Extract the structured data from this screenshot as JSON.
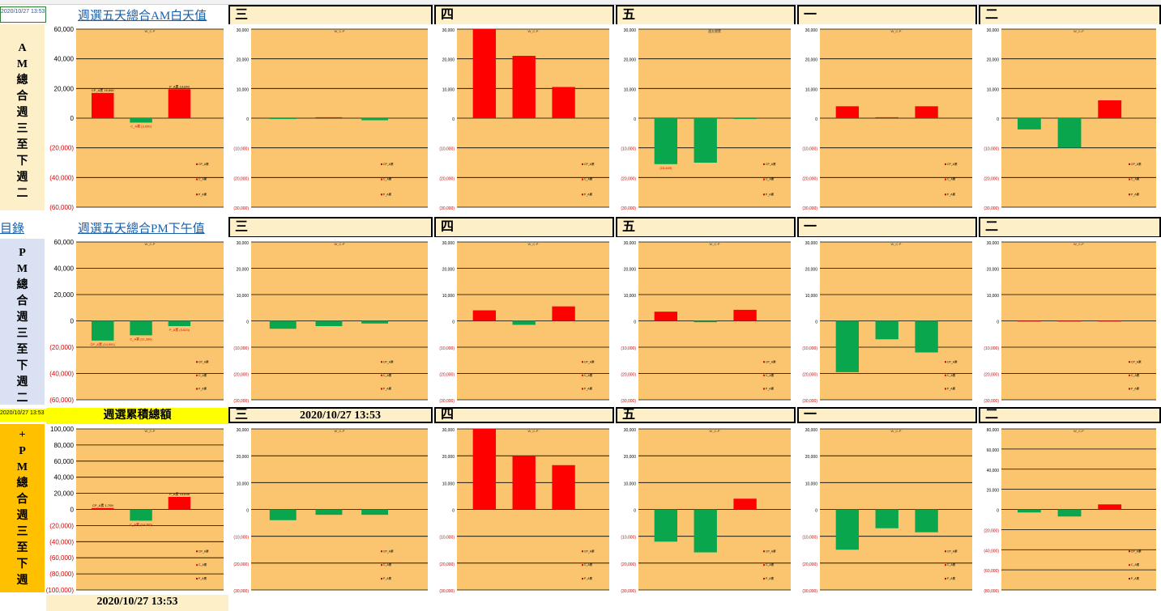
{
  "colors": {
    "plot_bg": "#fbc56f",
    "pos": "#ff0000",
    "neg": "#0aa64e",
    "grid": "#000000",
    "neg_label": "#d40000"
  },
  "rows": [
    {
      "title": "週選五天總合AM白天值",
      "left_top": "2020/10/27 13:53",
      "left_side": [
        "A",
        "M",
        "總",
        "合",
        "週",
        "三",
        "至",
        "下",
        "週",
        "二"
      ],
      "day_headers": [
        "三",
        "四",
        "五",
        "一",
        "二"
      ],
      "charts": [
        {
          "type": "bar",
          "title": "W_C-P",
          "ticks": [
            "60,000",
            "40,000",
            "20,000",
            "0",
            "(20,000)",
            "(40,000)",
            "(60,000)"
          ],
          "ylim": [
            -60000,
            60000
          ],
          "values": [
            17000,
            -3000,
            19500
          ],
          "labels": [
            "CP_A累 16,660",
            "C_A累 (3,000)",
            "P_A累 19,640"
          ]
        },
        {
          "type": "bar",
          "title": "W_C-P",
          "ticks": [
            "30,000",
            "20,000",
            "10,000",
            "0",
            "(10,000)",
            "(20,000)",
            "(30,000)"
          ],
          "ylim": [
            -30000,
            30000
          ],
          "values": [
            -300,
            300,
            -700
          ]
        },
        {
          "type": "bar",
          "title": "W_C-P",
          "ticks": [
            "30,000",
            "20,000",
            "10,000",
            "0",
            "(10,000)",
            "(20,000)",
            "(30,000)"
          ],
          "ylim": [
            -30000,
            30000
          ],
          "values": [
            30000,
            21000,
            10500
          ]
        },
        {
          "type": "bar",
          "title": "週五總累",
          "ticks": [
            "30,000",
            "20,000",
            "10,000",
            "0",
            "(10,000)",
            "(20,000)",
            "(30,000)"
          ],
          "ylim": [
            -30000,
            30000
          ],
          "values": [
            -15500,
            -15000,
            -300
          ],
          "labels": [
            "(15,469)",
            "",
            ""
          ]
        },
        {
          "type": "bar",
          "title": "W_C-P",
          "ticks": [
            "30,000",
            "20,000",
            "10,000",
            "0",
            "(10,000)",
            "(20,000)",
            "(30,000)"
          ],
          "ylim": [
            -30000,
            30000
          ],
          "values": [
            4000,
            300,
            4000
          ]
        },
        {
          "type": "bar",
          "title": "W_C-P",
          "ticks": [
            "30,000",
            "20,000",
            "10,000",
            "0",
            "(10,000)",
            "(20,000)",
            "(30,000)"
          ],
          "ylim": [
            -30000,
            30000
          ],
          "values": [
            -3800,
            -10000,
            6000
          ]
        }
      ]
    },
    {
      "title": "週選五天總合PM下午值",
      "left_top": "目錄",
      "left_side": [
        "P",
        "M",
        "總",
        "合",
        "週",
        "三",
        "至",
        "下",
        "週",
        "二"
      ],
      "day_headers": [
        "三",
        "四",
        "五",
        "一",
        "二"
      ],
      "charts": [
        {
          "type": "bar",
          "title": "W_C-P",
          "ticks": [
            "60,000",
            "40,000",
            "20,000",
            "0",
            "(20,000)",
            "(40,000)",
            "(60,000)"
          ],
          "ylim": [
            -60000,
            60000
          ],
          "values": [
            -15000,
            -11000,
            -4000
          ],
          "labels": [
            "CP_A累 (14,951)",
            "C_A累 (11,396)",
            "P_A累 (3,623)"
          ]
        },
        {
          "type": "bar",
          "title": "W_C-P",
          "ticks": [
            "30,000",
            "20,000",
            "10,000",
            "0",
            "(10,000)",
            "(20,000)",
            "(30,000)"
          ],
          "ylim": [
            -30000,
            30000
          ],
          "values": [
            -3000,
            -2000,
            -1000
          ]
        },
        {
          "type": "bar",
          "title": "W_C-P",
          "ticks": [
            "30,000",
            "20,000",
            "10,000",
            "0",
            "(10,000)",
            "(20,000)",
            "(30,000)"
          ],
          "ylim": [
            -30000,
            30000
          ],
          "values": [
            4000,
            -1500,
            5500
          ]
        },
        {
          "type": "bar",
          "title": "W_C-P",
          "ticks": [
            "30,000",
            "20,000",
            "10,000",
            "0",
            "(10,000)",
            "(20,000)",
            "(30,000)"
          ],
          "ylim": [
            -30000,
            30000
          ],
          "values": [
            3500,
            -500,
            4200
          ]
        },
        {
          "type": "bar",
          "title": "W_C-P",
          "ticks": [
            "30,000",
            "20,000",
            "10,000",
            "0",
            "(10,000)",
            "(20,000)",
            "(30,000)"
          ],
          "ylim": [
            -30000,
            30000
          ],
          "values": [
            -19500,
            -7000,
            -12000
          ]
        },
        {
          "type": "bar",
          "title": "W_C-P",
          "ticks": [
            "30,000",
            "20,000",
            "10,000",
            "0",
            "(10,000)",
            "(20,000)",
            "(30,000)"
          ],
          "ylim": [
            -30000,
            30000
          ],
          "values": [
            0,
            0,
            0
          ]
        }
      ]
    },
    {
      "title": "週選累積總額",
      "left_top": "2020/10/27 13:53",
      "left_side": [
        "+",
        "P",
        "M",
        "總",
        "合",
        "週",
        "三",
        "至",
        "下",
        "週"
      ],
      "day_headers": [
        "三",
        "四",
        "五",
        "一",
        "二"
      ],
      "timestamp": "2020/10/27 13:53",
      "bottom_timestamp": "2020/10/27 13:53",
      "charts": [
        {
          "type": "bar",
          "title": "W_C-P",
          "ticks": [
            "100,000",
            "80,000",
            "60,000",
            "40,000",
            "20,000",
            "0",
            "(20,000)",
            "(40,000)",
            "(60,000)",
            "(80,000)",
            "(100,000)"
          ],
          "ylim": [
            -100000,
            100000
          ],
          "values": [
            1700,
            -14000,
            15600
          ],
          "labels": [
            "CP_A累 1,709",
            "C_A累 (14,395)",
            "P_A累 15,638"
          ]
        },
        {
          "type": "bar",
          "title": "W_C-P",
          "ticks": [
            "30,000",
            "20,000",
            "10,000",
            "0",
            "(10,000)",
            "(20,000)",
            "(30,000)"
          ],
          "ylim": [
            -30000,
            30000
          ],
          "values": [
            -4000,
            -2000,
            -2000
          ]
        },
        {
          "type": "bar",
          "title": "W_C-P",
          "ticks": [
            "30,000",
            "20,000",
            "10,000",
            "0",
            "(10,000)",
            "(20,000)",
            "(30,000)"
          ],
          "ylim": [
            -30000,
            30000
          ],
          "values": [
            30000,
            20000,
            16500
          ]
        },
        {
          "type": "bar",
          "title": "W_C-P",
          "ticks": [
            "30,000",
            "20,000",
            "10,000",
            "0",
            "(10,000)",
            "(20,000)",
            "(30,000)"
          ],
          "ylim": [
            -30000,
            30000
          ],
          "values": [
            -12000,
            -16000,
            4000
          ]
        },
        {
          "type": "bar",
          "title": "W_C-P",
          "ticks": [
            "30,000",
            "20,000",
            "10,000",
            "0",
            "(10,000)",
            "(20,000)",
            "(30,000)"
          ],
          "ylim": [
            -30000,
            30000
          ],
          "values": [
            -15000,
            -7000,
            -8500
          ]
        },
        {
          "type": "bar",
          "title": "W_C-P",
          "ticks": [
            "80,000",
            "60,000",
            "40,000",
            "20,000",
            "0",
            "(20,000)",
            "(40,000)",
            "(60,000)",
            "(80,000)"
          ],
          "ylim": [
            -80000,
            80000
          ],
          "values": [
            -3000,
            -7000,
            5000
          ]
        }
      ]
    }
  ],
  "legend": [
    "CP_A累",
    "C_A累",
    "P_A累"
  ]
}
